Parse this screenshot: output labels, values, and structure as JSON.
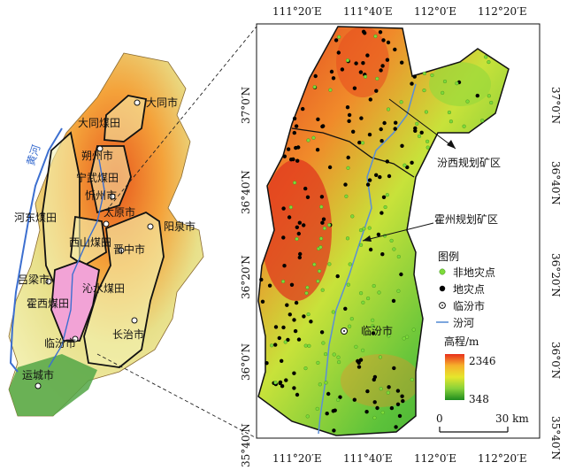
{
  "overview": {
    "river_label": "黄河",
    "labels": [
      "大同市",
      "大同煤田",
      "朔州市",
      "宁武煤田",
      "忻州市",
      "太原市",
      "阳泉市",
      "河东煤田",
      "西山煤田",
      "晋中市",
      "吕梁市",
      "沁水煤田",
      "霍西煤田",
      "临汾市",
      "长治市",
      "运城市"
    ]
  },
  "detail": {
    "top_ticks": [
      "111°20′E",
      "111°40′E",
      "112°0′E",
      "112°20′E"
    ],
    "bottom_ticks": [
      "111°20′E",
      "111°40′E",
      "112°0′E",
      "112°20′E"
    ],
    "left_ticks": [
      "37°0′N",
      "36°40′N",
      "36°20′N",
      "36°0′N",
      "35°40′N"
    ],
    "right_ticks": [
      "37°0′N",
      "36°40′N",
      "36°20′N",
      "36°0′N",
      "35°40′N"
    ],
    "region_fenxi": "汾西规划矿区",
    "region_huozhou": "霍州规划矿区",
    "city": "临汾市"
  },
  "legend": {
    "title": "图例",
    "items": [
      {
        "label": "非地灾点",
        "color": "#7ddb3a"
      },
      {
        "label": "地灾点",
        "color": "#000000"
      },
      {
        "label": "临汾市",
        "color": "#ffffff"
      },
      {
        "label": "汾河",
        "color": "#5b8fd6"
      }
    ],
    "elevation_title": "高程/m",
    "elev_max": "2346",
    "elev_min": "348",
    "elev_colors": [
      "#e8301c",
      "#f6b12b",
      "#e6e62c",
      "#88d23a",
      "#1f8c1f"
    ]
  },
  "scale": {
    "start": "0",
    "end": "30 km"
  }
}
